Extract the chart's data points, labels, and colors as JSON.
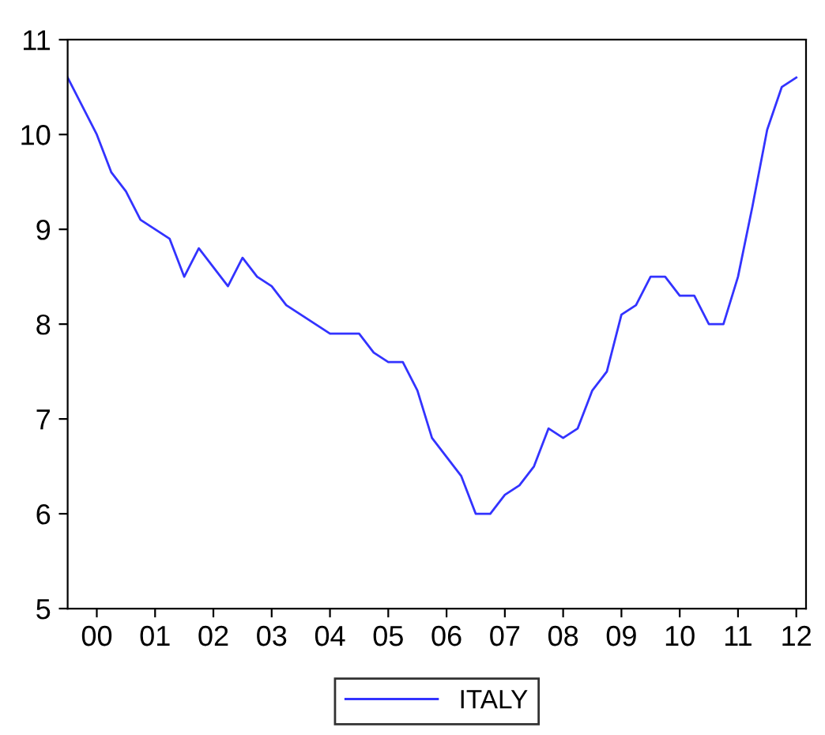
{
  "chart_data": {
    "type": "line",
    "x": [
      "2000-01",
      "2000-04",
      "2000-07",
      "2000-10",
      "2001-01",
      "2001-04",
      "2001-07",
      "2001-10",
      "2002-01",
      "2002-04",
      "2002-07",
      "2002-10",
      "2003-01",
      "2003-04",
      "2003-07",
      "2003-10",
      "2004-01",
      "2004-04",
      "2004-07",
      "2004-10",
      "2005-01",
      "2005-04",
      "2005-07",
      "2005-10",
      "2006-01",
      "2006-04",
      "2006-07",
      "2006-10",
      "2007-01",
      "2007-04",
      "2007-07",
      "2007-10",
      "2008-01",
      "2008-04",
      "2008-07",
      "2008-10",
      "2009-01",
      "2009-04",
      "2009-07",
      "2009-10",
      "2010-01",
      "2010-04",
      "2010-07",
      "2010-10",
      "2011-01",
      "2011-04",
      "2011-07",
      "2011-10",
      "2012-01",
      "2012-04",
      "2012-07"
    ],
    "series": [
      {
        "name": "ITALY",
        "color": "#3333ff",
        "values": [
          10.6,
          10.3,
          10.0,
          9.6,
          9.4,
          9.1,
          9.0,
          8.9,
          8.5,
          8.8,
          8.6,
          8.4,
          8.7,
          8.5,
          8.4,
          8.2,
          8.1,
          8.0,
          7.9,
          7.9,
          7.9,
          7.7,
          7.6,
          7.6,
          7.3,
          6.8,
          6.6,
          6.4,
          6.0,
          6.0,
          6.2,
          6.3,
          6.5,
          6.9,
          6.8,
          6.9,
          7.3,
          7.5,
          8.1,
          8.2,
          8.5,
          8.5,
          8.3,
          8.3,
          8.0,
          8.0,
          8.5,
          9.25,
          10.05,
          10.5,
          10.6
        ]
      }
    ],
    "xlim": [
      "2000-01",
      "2012-09"
    ],
    "xticks": [
      {
        "value": "2000-07",
        "label": "00"
      },
      {
        "value": "2001-07",
        "label": "01"
      },
      {
        "value": "2002-07",
        "label": "02"
      },
      {
        "value": "2003-07",
        "label": "03"
      },
      {
        "value": "2004-07",
        "label": "04"
      },
      {
        "value": "2005-07",
        "label": "05"
      },
      {
        "value": "2006-07",
        "label": "06"
      },
      {
        "value": "2007-07",
        "label": "07"
      },
      {
        "value": "2008-07",
        "label": "08"
      },
      {
        "value": "2009-07",
        "label": "09"
      },
      {
        "value": "2010-07",
        "label": "10"
      },
      {
        "value": "2011-07",
        "label": "11"
      },
      {
        "value": "2012-07",
        "label": "12"
      }
    ],
    "ylim": [
      5,
      11
    ],
    "yticks": [
      5,
      6,
      7,
      8,
      9,
      10,
      11
    ],
    "grid": false,
    "legend": "bottom",
    "line_style": "solid",
    "marker": "none"
  }
}
